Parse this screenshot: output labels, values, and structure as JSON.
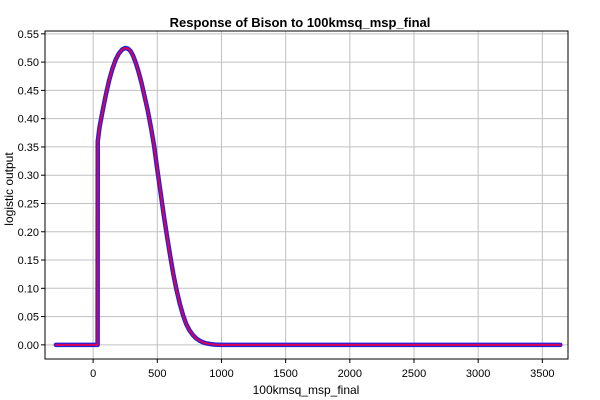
{
  "chart_data": {
    "type": "line",
    "title": "Response of Bison to 100kmsq_msp_final",
    "xlabel": "100kmsq_msp_final",
    "ylabel": "logistic output",
    "xlim": [
      -375,
      3700
    ],
    "ylim": [
      -0.025,
      0.555
    ],
    "xticks": [
      0,
      500,
      1000,
      1500,
      2000,
      2500,
      3000,
      3500
    ],
    "yticks": [
      0.0,
      0.05,
      0.1,
      0.15,
      0.2,
      0.25,
      0.3,
      0.35,
      0.4,
      0.45,
      0.5,
      0.55
    ],
    "ytick_labels": [
      "0.00",
      "0.05",
      "0.10",
      "0.15",
      "0.20",
      "0.25",
      "0.30",
      "0.35",
      "0.40",
      "0.45",
      "0.50",
      "0.55"
    ],
    "grid": true,
    "colors": {
      "mean": "#dd0055",
      "band": "#2222dd",
      "grid": "#c0c0c0",
      "axis": "#000000"
    },
    "series": [
      {
        "role": "mean",
        "x": [
          -290,
          0,
          35,
          36,
          50,
          75,
          100,
          125,
          150,
          175,
          200,
          225,
          250,
          270,
          290,
          310,
          330,
          350,
          375,
          400,
          425,
          450,
          475,
          500,
          525,
          550,
          575,
          600,
          625,
          650,
          675,
          700,
          725,
          750,
          775,
          800,
          825,
          850,
          875,
          900,
          925,
          950,
          975,
          1000,
          1050,
          1100,
          1200,
          1500,
          2000,
          2500,
          3000,
          3640
        ],
        "y": [
          0.0,
          0.0,
          0.0,
          0.36,
          0.385,
          0.415,
          0.443,
          0.468,
          0.488,
          0.504,
          0.515,
          0.522,
          0.525,
          0.524,
          0.52,
          0.512,
          0.5,
          0.486,
          0.465,
          0.44,
          0.415,
          0.385,
          0.352,
          0.31,
          0.27,
          0.23,
          0.193,
          0.158,
          0.125,
          0.097,
          0.073,
          0.053,
          0.037,
          0.026,
          0.018,
          0.012,
          0.008,
          0.005,
          0.003,
          0.002,
          0.001,
          0.0005,
          0.0002,
          0.0,
          0.0,
          0.0,
          0.0,
          0.0,
          0.0,
          0.0,
          0.0,
          0.0
        ]
      }
    ]
  }
}
